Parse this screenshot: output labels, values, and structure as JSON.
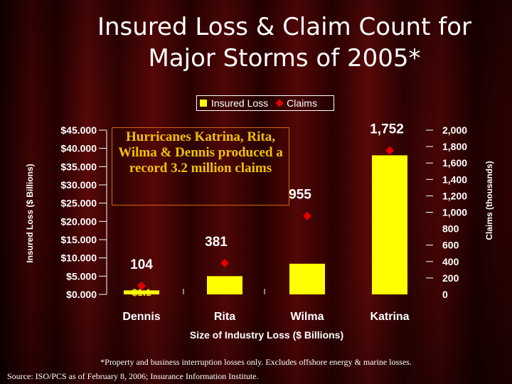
{
  "title": {
    "line1": "Insured Loss & Claim Count for",
    "line2": "Major Storms of 2005*"
  },
  "legend": {
    "loss": "Insured Loss",
    "claims": "Claims"
  },
  "callout": "Hurricanes Katrina, Rita, Wilma & Dennis produced a record 3.2 million claims",
  "footnote": "*Property and business interruption losses only.  Excludes offshore energy & marine losses.",
  "source": "Source: ISO/PCS as of February 8, 2006; Insurance Information Institute.",
  "colors": {
    "bar": "#ffff00",
    "claims_marker": "#e00000",
    "text": "#ffffff"
  },
  "chart_data": {
    "type": "bar",
    "xlabel": "Size of Industry Loss ($ Billions)",
    "ylabel": "Insured Loss ($ Billions)",
    "y2label": "Claims (thousands)",
    "categories": [
      "Dennis",
      "Rita",
      "Wilma",
      "Katrina"
    ],
    "ylim": [
      0,
      45
    ],
    "y2lim": [
      0,
      2000
    ],
    "yticks": [
      "$0.000",
      "$5.000",
      "$10.000",
      "$15.000",
      "$20.000",
      "$25.000",
      "$30.000",
      "$35.000",
      "$40.000",
      "$45.000"
    ],
    "y2ticks": [
      "0",
      "200",
      "400",
      "600",
      "800",
      "1,000",
      "1,200",
      "1,400",
      "1,600",
      "1,800",
      "2,000"
    ],
    "series": [
      {
        "name": "Insured Loss",
        "values": [
          1.1,
          5.0,
          8.4,
          38.1
        ],
        "labels": [
          "$1.1",
          "$5.0",
          "$8.4",
          "$38.1"
        ]
      },
      {
        "name": "Claims",
        "values": [
          104,
          381,
          955,
          1752
        ],
        "labels": [
          "104",
          "381",
          "955",
          "1,752"
        ]
      }
    ]
  }
}
